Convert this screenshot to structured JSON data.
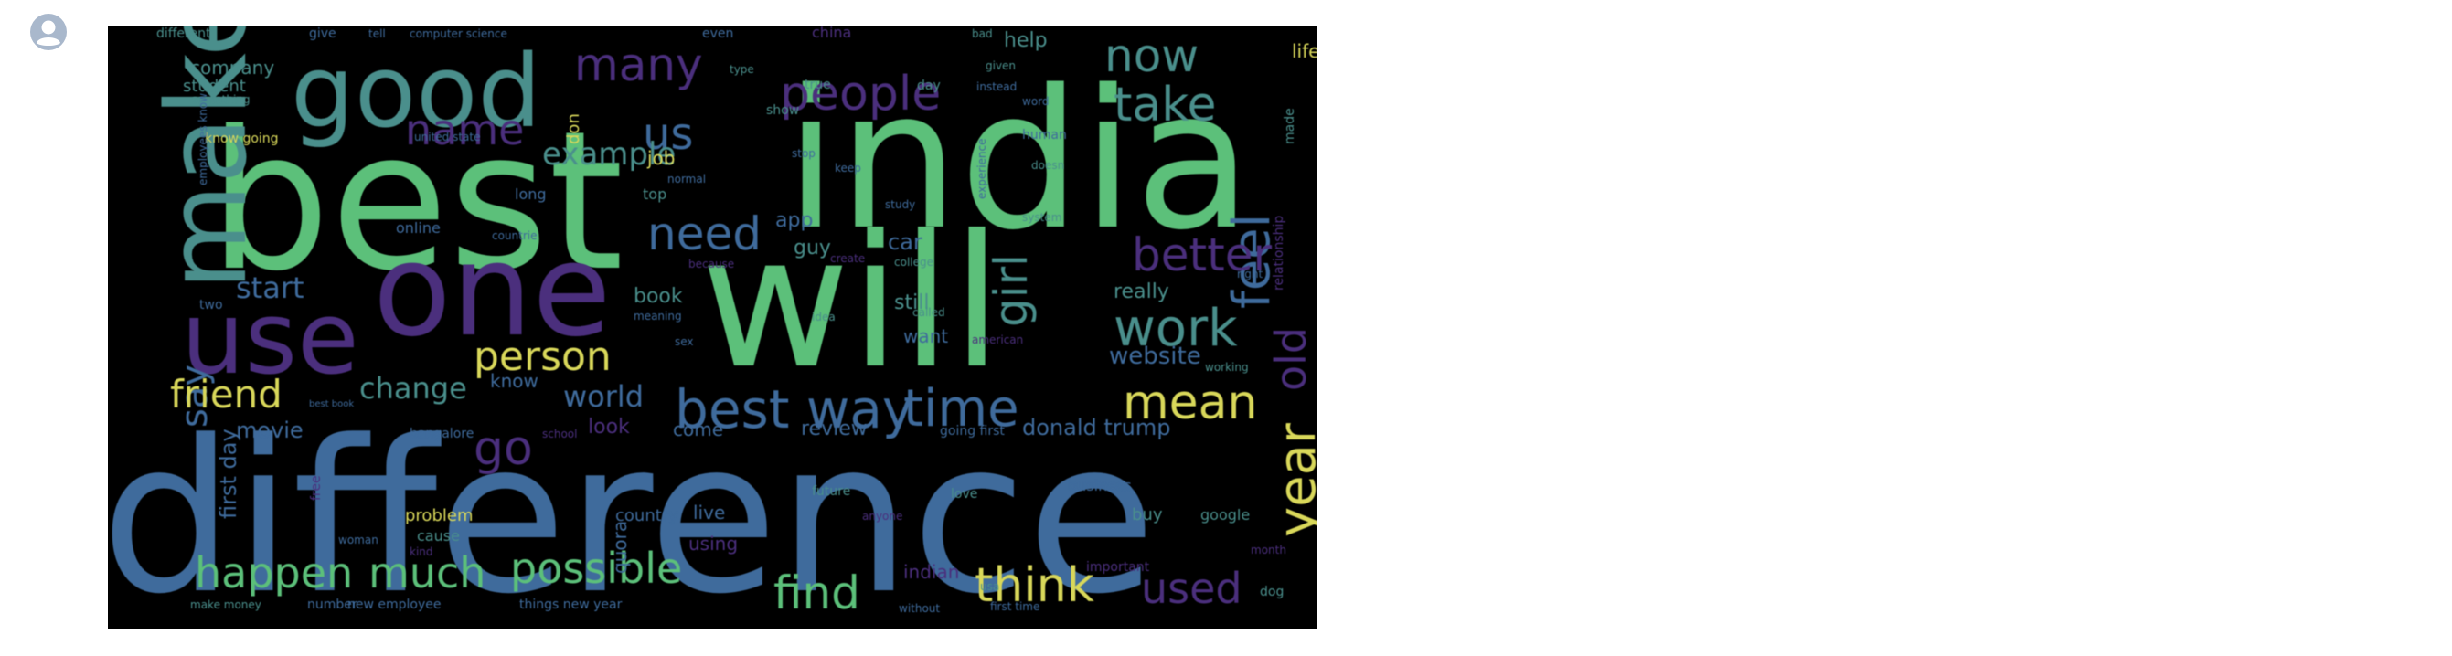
{
  "avatar": {
    "icon": "user-avatar-icon"
  },
  "wordcloud": {
    "words": [
      {
        "text": "india",
        "color": "#5cc07a",
        "size": 210,
        "rotate": 0
      },
      {
        "text": "best",
        "color": "#5cc07a",
        "size": 210,
        "rotate": 0
      },
      {
        "text": "will",
        "color": "#5cc07a",
        "size": 200,
        "rotate": 0
      },
      {
        "text": "difference",
        "color": "#3f6b9c",
        "size": 230,
        "rotate": 0
      },
      {
        "text": "one",
        "color": "#4b2f7d",
        "size": 140,
        "rotate": 0
      },
      {
        "text": "use",
        "color": "#4b2f7d",
        "size": 110,
        "rotate": 0
      },
      {
        "text": "good",
        "color": "#4a8f8c",
        "size": 110,
        "rotate": 0
      },
      {
        "text": "make",
        "color": "#4a8f8c",
        "size": 120,
        "rotate": -90
      },
      {
        "text": "many",
        "color": "#4b2f7d",
        "size": 50,
        "rotate": 0
      },
      {
        "text": "now",
        "color": "#4a8f8c",
        "size": 50,
        "rotate": 0
      },
      {
        "text": "people",
        "color": "#4b2f7d",
        "size": 52,
        "rotate": 0
      },
      {
        "text": "take",
        "color": "#4a8f8c",
        "size": 52,
        "rotate": 0
      },
      {
        "text": "name",
        "color": "#4b2f7d",
        "size": 46,
        "rotate": 0
      },
      {
        "text": "us",
        "color": "#3f6b9c",
        "size": 48,
        "rotate": 0
      },
      {
        "text": "example",
        "color": "#4a8f8c",
        "size": 34,
        "rotate": 0
      },
      {
        "text": "feel",
        "color": "#3f6b9c",
        "size": 56,
        "rotate": -90
      },
      {
        "text": "better",
        "color": "#4b2f7d",
        "size": 50,
        "rotate": 0
      },
      {
        "text": "need",
        "color": "#3f6b9c",
        "size": 50,
        "rotate": 0
      },
      {
        "text": "girl",
        "color": "#4a8f8c",
        "size": 50,
        "rotate": -90
      },
      {
        "text": "work",
        "color": "#4a8f8c",
        "size": 56,
        "rotate": 0
      },
      {
        "text": "old",
        "color": "#4b2f7d",
        "size": 46,
        "rotate": -90
      },
      {
        "text": "start",
        "color": "#3f6b9c",
        "size": 32,
        "rotate": 0
      },
      {
        "text": "say",
        "color": "#3f6b9c",
        "size": 40,
        "rotate": -90
      },
      {
        "text": "person",
        "color": "#d9d85a",
        "size": 44,
        "rotate": 0
      },
      {
        "text": "friend",
        "color": "#d9d85a",
        "size": 42,
        "rotate": 0
      },
      {
        "text": "change",
        "color": "#4a8f8c",
        "size": 32,
        "rotate": 0
      },
      {
        "text": "best way",
        "color": "#3f6b9c",
        "size": 58,
        "rotate": 0
      },
      {
        "text": "time",
        "color": "#3f6b9c",
        "size": 56,
        "rotate": 0
      },
      {
        "text": "mean",
        "color": "#d9d85a",
        "size": 52,
        "rotate": 0
      },
      {
        "text": "year",
        "color": "#d9d85a",
        "size": 56,
        "rotate": -90
      },
      {
        "text": "world",
        "color": "#3f6b9c",
        "size": 32,
        "rotate": 0
      },
      {
        "text": "website",
        "color": "#3f6b9c",
        "size": 26,
        "rotate": 0
      },
      {
        "text": "go",
        "color": "#4b2f7d",
        "size": 52,
        "rotate": 0
      },
      {
        "text": "happen",
        "color": "#5cc07a",
        "size": 46,
        "rotate": 0
      },
      {
        "text": "much",
        "color": "#5cc07a",
        "size": 46,
        "rotate": 0
      },
      {
        "text": "possible",
        "color": "#5cc07a",
        "size": 46,
        "rotate": 0
      },
      {
        "text": "find",
        "color": "#5cc07a",
        "size": 50,
        "rotate": 0
      },
      {
        "text": "think",
        "color": "#d9d85a",
        "size": 52,
        "rotate": 0
      },
      {
        "text": "used",
        "color": "#4b2f7d",
        "size": 46,
        "rotate": 0
      },
      {
        "text": "donald trump",
        "color": "#3f6b9c",
        "size": 24,
        "rotate": 0
      },
      {
        "text": "review",
        "color": "#3f6b9c",
        "size": 22,
        "rotate": 0
      },
      {
        "text": "movie",
        "color": "#3f6b9c",
        "size": 24,
        "rotate": 0
      },
      {
        "text": "first day",
        "color": "#3f6b9c",
        "size": 24,
        "rotate": -90
      },
      {
        "text": "book",
        "color": "#4a8f8c",
        "size": 22,
        "rotate": 0
      },
      {
        "text": "really",
        "color": "#4a8f8c",
        "size": 22,
        "rotate": 0
      },
      {
        "text": "still",
        "color": "#4a8f8c",
        "size": 22,
        "rotate": 0
      },
      {
        "text": "want",
        "color": "#3f6b9c",
        "size": 20,
        "rotate": 0
      },
      {
        "text": "know",
        "color": "#3f6b9c",
        "size": 20,
        "rotate": 0
      },
      {
        "text": "look",
        "color": "#4b2f7d",
        "size": 22,
        "rotate": 0
      },
      {
        "text": "come",
        "color": "#3f6b9c",
        "size": 20,
        "rotate": 0
      },
      {
        "text": "car",
        "color": "#3f6b9c",
        "size": 24,
        "rotate": 0
      },
      {
        "text": "guy",
        "color": "#4a8f8c",
        "size": 22,
        "rotate": 0
      },
      {
        "text": "app",
        "color": "#3f6b9c",
        "size": 22,
        "rotate": 0
      },
      {
        "text": "help",
        "color": "#4a8f8c",
        "size": 22,
        "rotate": 0
      },
      {
        "text": "company",
        "color": "#4a8f8c",
        "size": 20,
        "rotate": 0
      },
      {
        "text": "student",
        "color": "#4a8f8c",
        "size": 18,
        "rotate": 0
      },
      {
        "text": "life",
        "color": "#d9d85a",
        "size": 20,
        "rotate": 0
      },
      {
        "text": "job",
        "color": "#d9d85a",
        "size": 20,
        "rotate": 0
      },
      {
        "text": "don",
        "color": "#d9d85a",
        "size": 18,
        "rotate": -90
      },
      {
        "text": "know going",
        "color": "#d9d85a",
        "size": 14,
        "rotate": 0
      },
      {
        "text": "online",
        "color": "#3f6b9c",
        "size": 16,
        "rotate": 0
      },
      {
        "text": "long",
        "color": "#3f6b9c",
        "size": 16,
        "rotate": 0
      },
      {
        "text": "top",
        "color": "#4a8f8c",
        "size": 16,
        "rotate": 0
      },
      {
        "text": "country",
        "color": "#3f6b9c",
        "size": 18,
        "rotate": 0
      },
      {
        "text": "live",
        "color": "#3f6b9c",
        "size": 20,
        "rotate": 0
      },
      {
        "text": "using",
        "color": "#4b2f7d",
        "size": 20,
        "rotate": 0
      },
      {
        "text": "quora",
        "color": "#3f6b9c",
        "size": 20,
        "rotate": -90
      },
      {
        "text": "problem",
        "color": "#d9d85a",
        "size": 18,
        "rotate": 0
      },
      {
        "text": "cause",
        "color": "#4a8f8c",
        "size": 16,
        "rotate": 0
      },
      {
        "text": "indian",
        "color": "#4b2f7d",
        "size": 20,
        "rotate": 0
      },
      {
        "text": "buy",
        "color": "#4a8f8c",
        "size": 18,
        "rotate": 0
      },
      {
        "text": "google",
        "color": "#4a8f8c",
        "size": 16,
        "rotate": 0
      },
      {
        "text": "business",
        "color": "#3f6b9c",
        "size": 16,
        "rotate": 0
      },
      {
        "text": "future",
        "color": "#4a8f8c",
        "size": 14,
        "rotate": 0
      },
      {
        "text": "love",
        "color": "#4a8f8c",
        "size": 14,
        "rotate": 0
      },
      {
        "text": "important",
        "color": "#4b2f7d",
        "size": 14,
        "rotate": 0
      },
      {
        "text": "month",
        "color": "#4b2f7d",
        "size": 12,
        "rotate": 0
      },
      {
        "text": "dog",
        "color": "#4a8f8c",
        "size": 14,
        "rotate": 0
      },
      {
        "text": "two",
        "color": "#3f6b9c",
        "size": 14,
        "rotate": 0
      },
      {
        "text": "different",
        "color": "#4a8f8c",
        "size": 14,
        "rotate": 0
      },
      {
        "text": "give",
        "color": "#3f6b9c",
        "size": 14,
        "rotate": 0
      },
      {
        "text": "tell",
        "color": "#3f6b9c",
        "size": 12,
        "rotate": 0
      },
      {
        "text": "computer science",
        "color": "#3f6b9c",
        "size": 12,
        "rotate": 0
      },
      {
        "text": "even",
        "color": "#3f6b9c",
        "size": 14,
        "rotate": 0
      },
      {
        "text": "china",
        "color": "#4b2f7d",
        "size": 16,
        "rotate": 0
      },
      {
        "text": "bad",
        "color": "#4a8f8c",
        "size": 12,
        "rotate": 0
      },
      {
        "text": "type",
        "color": "#4a8f8c",
        "size": 12,
        "rotate": 0
      },
      {
        "text": "given",
        "color": "#4a8f8c",
        "size": 12,
        "rotate": 0
      },
      {
        "text": "true",
        "color": "#4a8f8c",
        "size": 14,
        "rotate": 0
      },
      {
        "text": "day",
        "color": "#4a8f8c",
        "size": 14,
        "rotate": 0
      },
      {
        "text": "instead",
        "color": "#3f6b9c",
        "size": 12,
        "rotate": 0
      },
      {
        "text": "word",
        "color": "#3f6b9c",
        "size": 12,
        "rotate": 0
      },
      {
        "text": "show",
        "color": "#4a8f8c",
        "size": 14,
        "rotate": 0
      },
      {
        "text": "stop",
        "color": "#3f6b9c",
        "size": 12,
        "rotate": 0
      },
      {
        "text": "keep",
        "color": "#3f6b9c",
        "size": 12,
        "rotate": 0
      },
      {
        "text": "human",
        "color": "#3f6b9c",
        "size": 14,
        "rotate": 0
      },
      {
        "text": "doesn",
        "color": "#4a8f8c",
        "size": 12,
        "rotate": 0
      },
      {
        "text": "normal",
        "color": "#3f6b9c",
        "size": 12,
        "rotate": 0
      },
      {
        "text": "study",
        "color": "#3f6b9c",
        "size": 12,
        "rotate": 0
      },
      {
        "text": "experience",
        "color": "#3f6b9c",
        "size": 12,
        "rotate": -90
      },
      {
        "text": "relationship",
        "color": "#4b2f7d",
        "size": 14,
        "rotate": -90
      },
      {
        "text": "made",
        "color": "#4a8f8c",
        "size": 14,
        "rotate": -90
      },
      {
        "text": "system",
        "color": "#4a8f8c",
        "size": 12,
        "rotate": 0
      },
      {
        "text": "right",
        "color": "#3f6b9c",
        "size": 12,
        "rotate": 0
      },
      {
        "text": "college",
        "color": "#4a8f8c",
        "size": 12,
        "rotate": 0
      },
      {
        "text": "called",
        "color": "#4a8f8c",
        "size": 12,
        "rotate": 0
      },
      {
        "text": "idea",
        "color": "#4a8f8c",
        "size": 12,
        "rotate": 0
      },
      {
        "text": "sex",
        "color": "#3f6b9c",
        "size": 12,
        "rotate": 0
      },
      {
        "text": "meaning",
        "color": "#3f6b9c",
        "size": 12,
        "rotate": 0
      },
      {
        "text": "american",
        "color": "#4b2f7d",
        "size": 12,
        "rotate": 0
      },
      {
        "text": "working",
        "color": "#4a8f8c",
        "size": 12,
        "rotate": 0
      },
      {
        "text": "going first",
        "color": "#3f6b9c",
        "size": 14,
        "rotate": 0
      },
      {
        "text": "bangalore",
        "color": "#3f6b9c",
        "size": 14,
        "rotate": 0
      },
      {
        "text": "school",
        "color": "#4b2f7d",
        "size": 12,
        "rotate": 0
      },
      {
        "text": "something",
        "color": "#4a8f8c",
        "size": 12,
        "rotate": 0
      },
      {
        "text": "united state",
        "color": "#3f6b9c",
        "size": 12,
        "rotate": 0
      },
      {
        "text": "employees know",
        "color": "#3f6b9c",
        "size": 12,
        "rotate": -90
      },
      {
        "text": "countrie",
        "color": "#3f6b9c",
        "size": 12,
        "rotate": 0
      },
      {
        "text": "because",
        "color": "#4b2f7d",
        "size": 12,
        "rotate": 0
      },
      {
        "text": "create",
        "color": "#4b2f7d",
        "size": 12,
        "rotate": 0
      },
      {
        "text": "woman",
        "color": "#3f6b9c",
        "size": 12,
        "rotate": 0
      },
      {
        "text": "kind",
        "color": "#4b2f7d",
        "size": 12,
        "rotate": 0
      },
      {
        "text": "make money",
        "color": "#4a8f8c",
        "size": 12,
        "rotate": 0
      },
      {
        "text": "number",
        "color": "#3f6b9c",
        "size": 14,
        "rotate": 0
      },
      {
        "text": "new employee",
        "color": "#3f6b9c",
        "size": 14,
        "rotate": 0
      },
      {
        "text": "things new year",
        "color": "#3f6b9c",
        "size": 14,
        "rotate": 0
      },
      {
        "text": "without",
        "color": "#3f6b9c",
        "size": 12,
        "rotate": 0
      },
      {
        "text": "first time",
        "color": "#3f6b9c",
        "size": 12,
        "rotate": 0
      },
      {
        "text": "usa",
        "color": "#4a8f8c",
        "size": 12,
        "rotate": 0
      },
      {
        "text": "anyone",
        "color": "#4b2f7d",
        "size": 12,
        "rotate": 0
      },
      {
        "text": "free",
        "color": "#4b2f7d",
        "size": 14,
        "rotate": -90
      },
      {
        "text": "best book",
        "color": "#3f6b9c",
        "size": 10,
        "rotate": 0
      }
    ]
  }
}
